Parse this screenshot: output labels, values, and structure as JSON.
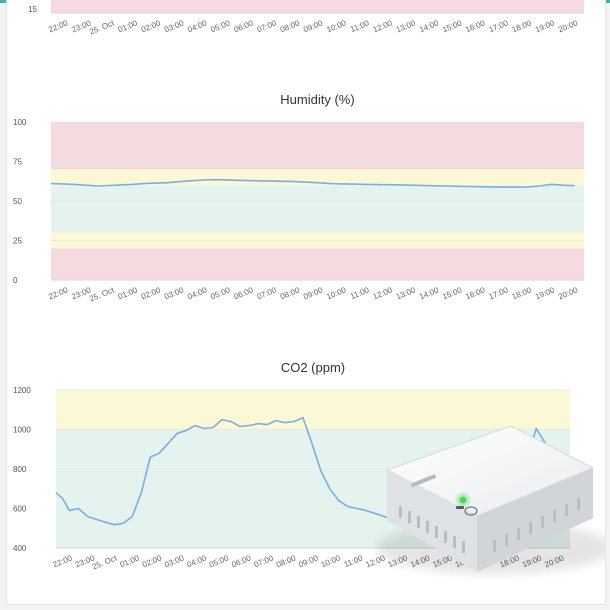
{
  "colors": {
    "line": "#7aaee0",
    "band_red": "#f5dbe0",
    "band_yellow": "#fbf8d6",
    "band_green": "#e5f3ef",
    "accent": "#3fb0ac"
  },
  "x_ticks": [
    "22:00",
    "23:00",
    "25. Oct",
    "01:00",
    "02:00",
    "03:00",
    "04:00",
    "05:00",
    "06:00",
    "07:00",
    "08:00",
    "09:00",
    "10:00",
    "11:00",
    "12:00",
    "13:00",
    "14:00",
    "15:00",
    "16:00",
    "17:00",
    "18:00",
    "19:00",
    "20:00"
  ],
  "chart_data": [
    {
      "id": "temperature",
      "type": "line",
      "title": "",
      "y_ticks": [
        15
      ],
      "note": "partially visible chart bottom edge"
    },
    {
      "id": "humidity",
      "type": "line",
      "title": "Humidity (%)",
      "xlabel": "",
      "ylabel": "",
      "ylim": [
        0,
        100
      ],
      "y_ticks": [
        0,
        25,
        50,
        75,
        100
      ],
      "bands": [
        {
          "from": 0,
          "to": 20,
          "level": "red"
        },
        {
          "from": 20,
          "to": 30,
          "level": "yellow"
        },
        {
          "from": 30,
          "to": 60,
          "level": "green"
        },
        {
          "from": 60,
          "to": 70,
          "level": "yellow"
        },
        {
          "from": 70,
          "to": 100,
          "level": "red"
        }
      ],
      "series": [
        {
          "x": [
            0,
            0.5,
            1,
            1.5,
            2,
            2.5,
            3,
            3.5,
            4,
            4.5,
            5,
            5.5,
            6,
            6.5,
            7,
            7.5,
            8,
            8.5,
            9,
            9.5,
            10,
            10.5,
            11,
            11.5,
            12,
            12.5,
            13,
            13.5,
            14,
            14.5,
            15,
            15.5,
            16,
            16.5,
            17,
            17.5,
            18,
            18.5,
            19,
            19.5,
            20,
            20.5,
            21,
            21.5,
            22,
            22.5
          ],
          "y": [
            61,
            60.8,
            60.5,
            60,
            59.5,
            59.8,
            60.2,
            60.5,
            61,
            61.3,
            61.6,
            62.2,
            62.8,
            63.3,
            63.5,
            63.4,
            63.1,
            62.9,
            62.7,
            62.6,
            62.5,
            62.3,
            61.9,
            61.5,
            61,
            60.8,
            60.7,
            60.5,
            60.4,
            60.3,
            60.2,
            60,
            59.8,
            59.6,
            59.5,
            59.3,
            59.2,
            59,
            58.9,
            58.8,
            58.8,
            58.9,
            59.5,
            60.6,
            60,
            59.7
          ]
        }
      ]
    },
    {
      "id": "co2",
      "type": "line",
      "title": "CO2 (ppm)",
      "xlabel": "",
      "ylabel": "",
      "ylim": [
        400,
        1200
      ],
      "y_ticks": [
        400,
        600,
        800,
        1000,
        1200
      ],
      "bands": [
        {
          "from": 400,
          "to": 1000,
          "level": "green"
        },
        {
          "from": 1000,
          "to": 1200,
          "level": "yellow"
        }
      ],
      "series": [
        {
          "x": [
            0,
            0.3,
            0.6,
            1,
            1.4,
            1.8,
            2.2,
            2.6,
            3,
            3.4,
            3.8,
            4.2,
            4.6,
            5,
            5.4,
            5.8,
            6.2,
            6.6,
            7,
            7.4,
            7.8,
            8.2,
            8.6,
            9,
            9.4,
            9.8,
            10.2,
            10.6,
            11,
            11.4,
            11.8,
            12.2,
            12.6,
            13,
            13.4,
            13.8,
            14.2,
            14.6,
            15,
            15.4,
            15.8,
            16.2,
            16.6,
            17,
            17.4,
            17.8,
            18.2,
            18.6,
            19,
            19.4,
            19.8,
            20.2,
            20.6,
            21,
            21.4,
            21.8,
            22.2
          ],
          "y": [
            680,
            650,
            590,
            600,
            560,
            545,
            530,
            518,
            525,
            560,
            680,
            860,
            880,
            930,
            980,
            995,
            1020,
            1005,
            1010,
            1050,
            1040,
            1015,
            1020,
            1030,
            1025,
            1045,
            1035,
            1040,
            1060,
            930,
            790,
            700,
            640,
            610,
            600,
            590,
            575,
            560,
            545,
            535,
            525,
            520,
            515,
            505,
            500,
            495,
            495,
            500,
            510,
            520,
            540,
            560,
            600,
            860,
            1005,
            930,
            860
          ]
        }
      ]
    }
  ]
}
